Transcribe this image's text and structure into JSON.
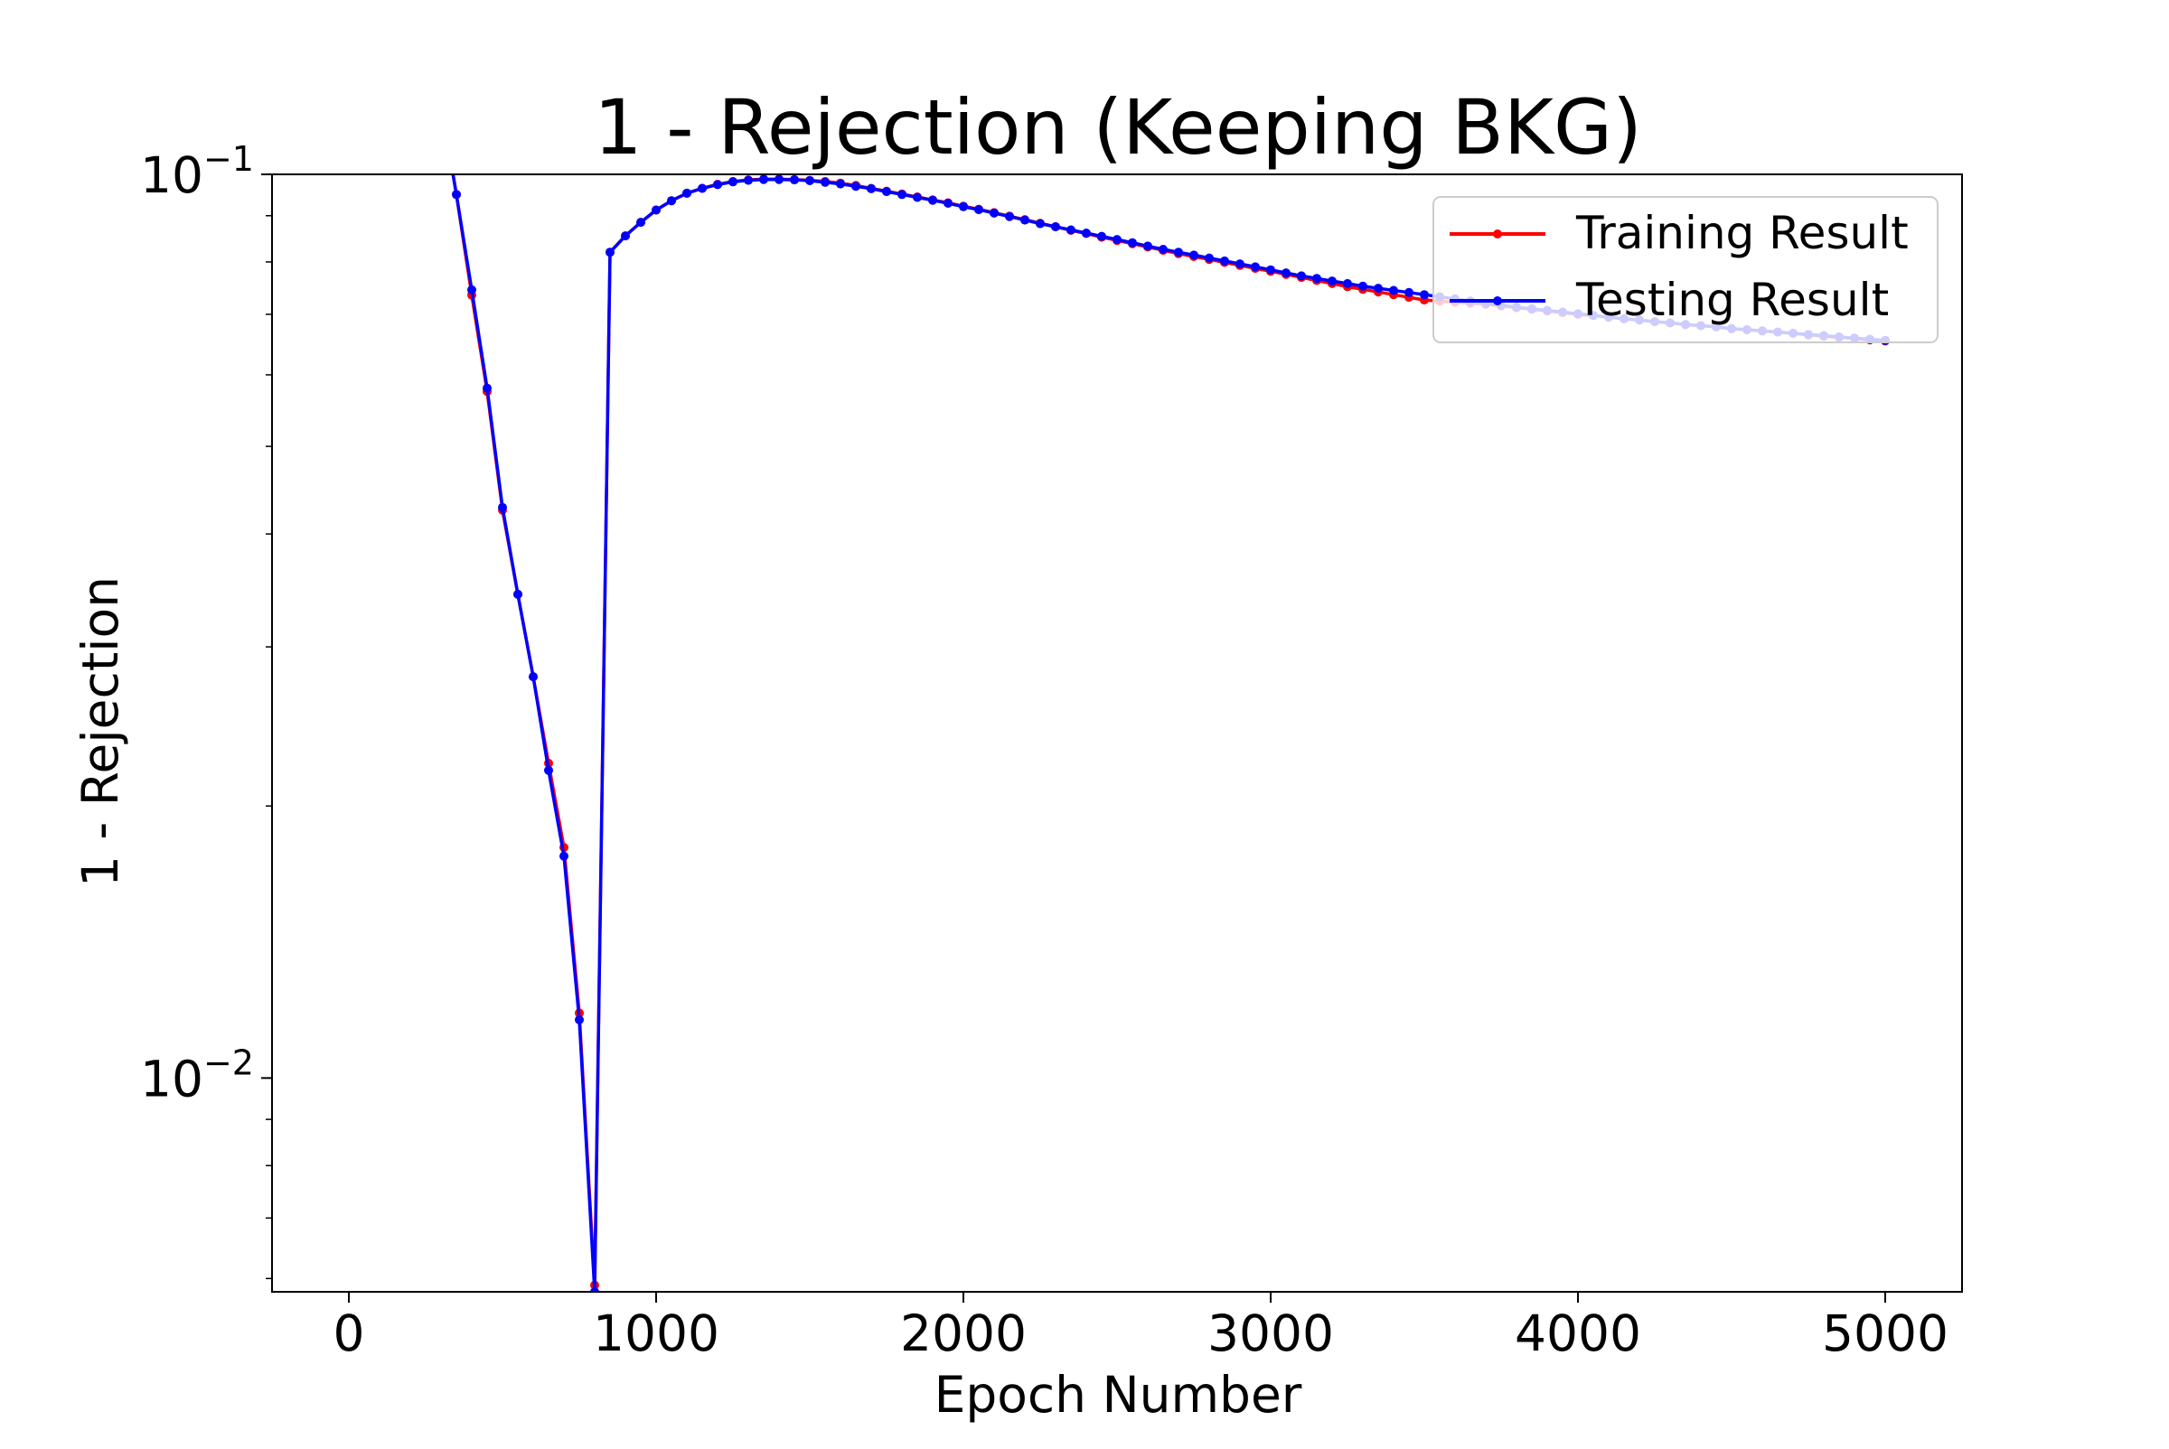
{
  "chart_data": {
    "type": "line",
    "title": "1 - Rejection (Keeping BKG)",
    "xlabel": "Epoch Number",
    "ylabel": "1 - Rejection",
    "xlim": [
      -250,
      5250
    ],
    "ylim": [
      0.0058,
      0.1
    ],
    "yscale": "log",
    "grid": false,
    "legend_position": "top-right",
    "x_ticks": [
      {
        "value": 0,
        "label": "0"
      },
      {
        "value": 1000,
        "label": "1000"
      },
      {
        "value": 2000,
        "label": "2000"
      },
      {
        "value": 3000,
        "label": "3000"
      },
      {
        "value": 4000,
        "label": "4000"
      },
      {
        "value": 5000,
        "label": "5000"
      }
    ],
    "y_ticks": [
      {
        "value": 0.1,
        "base": "10",
        "exp": "−1"
      },
      {
        "value": 0.01,
        "base": "10",
        "exp": "−2"
      }
    ],
    "series": [
      {
        "name": "Training Result",
        "color": "#ff0000",
        "x": [
          300,
          350,
          400,
          450,
          500,
          550,
          600,
          650,
          700,
          750,
          800,
          850,
          900,
          950,
          1000,
          1050,
          1100,
          1150,
          1200,
          1250,
          1300,
          1350,
          1400,
          1450,
          1500,
          1550,
          1600,
          1650,
          1700,
          1750,
          1800,
          1850,
          1900,
          1950,
          2000,
          2050,
          2100,
          2150,
          2200,
          2250,
          2300,
          2350,
          2400,
          2450,
          2500,
          2550,
          2600,
          2650,
          2700,
          2750,
          2800,
          2850,
          2900,
          2950,
          3000,
          3050,
          3100,
          3150,
          3200,
          3250,
          3300,
          3350,
          3400,
          3450,
          3500,
          3550,
          3600,
          3650,
          3700,
          3750,
          3800,
          3850,
          3900,
          3950,
          4000,
          4050,
          4100,
          4150,
          4200,
          4250,
          4300,
          4350,
          4400,
          4450,
          4500,
          4550,
          4600,
          4650,
          4700,
          4750,
          4800,
          4850,
          4900,
          4950,
          5000
        ],
        "y": [
          0.12,
          0.095,
          0.0735,
          0.0575,
          0.0425,
          0.0343,
          0.0278,
          0.0223,
          0.018,
          0.0118,
          0.0059,
          0.082,
          0.0855,
          0.0885,
          0.0913,
          0.0935,
          0.0953,
          0.0965,
          0.0975,
          0.0982,
          0.0986,
          0.0988,
          0.0988,
          0.0987,
          0.0985,
          0.0982,
          0.0978,
          0.0972,
          0.0965,
          0.0958,
          0.0951,
          0.0944,
          0.0937,
          0.093,
          0.0922,
          0.0915,
          0.0907,
          0.0899,
          0.0891,
          0.0883,
          0.0875,
          0.0867,
          0.086,
          0.0852,
          0.0845,
          0.0838,
          0.0831,
          0.0824,
          0.0817,
          0.0811,
          0.0805,
          0.0799,
          0.0793,
          0.0787,
          0.0781,
          0.0775,
          0.0769,
          0.0763,
          0.0757,
          0.0751,
          0.0746,
          0.0741,
          0.0736,
          0.0731,
          0.0726,
          0.0724,
          0.0722,
          0.072,
          0.0718,
          0.0715,
          0.0712,
          0.0709,
          0.0706,
          0.0703,
          0.07,
          0.0698,
          0.0695,
          0.0692,
          0.069,
          0.0687,
          0.0685,
          0.0682,
          0.068,
          0.0678,
          0.0675,
          0.0673,
          0.0671,
          0.0669,
          0.0667,
          0.0664,
          0.0662,
          0.066,
          0.0658,
          0.0656,
          0.0654
        ]
      },
      {
        "name": "Testing Result",
        "color": "#0000ff",
        "x": [
          300,
          350,
          400,
          450,
          500,
          550,
          600,
          650,
          700,
          750,
          800,
          850,
          900,
          950,
          1000,
          1050,
          1100,
          1150,
          1200,
          1250,
          1300,
          1350,
          1400,
          1450,
          1500,
          1550,
          1600,
          1650,
          1700,
          1750,
          1800,
          1850,
          1900,
          1950,
          2000,
          2050,
          2100,
          2150,
          2200,
          2250,
          2300,
          2350,
          2400,
          2450,
          2500,
          2550,
          2600,
          2650,
          2700,
          2750,
          2800,
          2850,
          2900,
          2950,
          3000,
          3050,
          3100,
          3150,
          3200,
          3250,
          3300,
          3350,
          3400,
          3450,
          3500,
          3550,
          3600,
          3650,
          3700,
          3750,
          3800,
          3850,
          3900,
          3950,
          4000,
          4050,
          4100,
          4150,
          4200,
          4250,
          4300,
          4350,
          4400,
          4450,
          4500,
          4550,
          4600,
          4650,
          4700,
          4750,
          4800,
          4850,
          4900,
          4950,
          5000
        ],
        "y": [
          0.12,
          0.095,
          0.0745,
          0.058,
          0.0428,
          0.0343,
          0.0278,
          0.0219,
          0.0176,
          0.0116,
          0.0058,
          0.082,
          0.0855,
          0.0885,
          0.0913,
          0.0935,
          0.0953,
          0.0965,
          0.0974,
          0.0981,
          0.0985,
          0.0987,
          0.0987,
          0.0986,
          0.0984,
          0.098,
          0.0976,
          0.097,
          0.0964,
          0.0957,
          0.095,
          0.0943,
          0.0936,
          0.0929,
          0.0921,
          0.0914,
          0.0906,
          0.0898,
          0.089,
          0.0882,
          0.0875,
          0.0868,
          0.0861,
          0.0854,
          0.0847,
          0.084,
          0.0833,
          0.0826,
          0.082,
          0.0814,
          0.0808,
          0.0802,
          0.0796,
          0.079,
          0.0784,
          0.0778,
          0.0772,
          0.0767,
          0.0762,
          0.0757,
          0.0752,
          0.0748,
          0.0744,
          0.074,
          0.0736,
          0.0732,
          0.0728,
          0.0724,
          0.072,
          0.0716,
          0.0713,
          0.071,
          0.0707,
          0.0704,
          0.0701,
          0.0698,
          0.0695,
          0.0692,
          0.069,
          0.0687,
          0.0685,
          0.0682,
          0.068,
          0.0678,
          0.0675,
          0.0673,
          0.0671,
          0.0669,
          0.0667,
          0.0665,
          0.0663,
          0.0661,
          0.0659,
          0.0657,
          0.0655
        ]
      }
    ]
  }
}
